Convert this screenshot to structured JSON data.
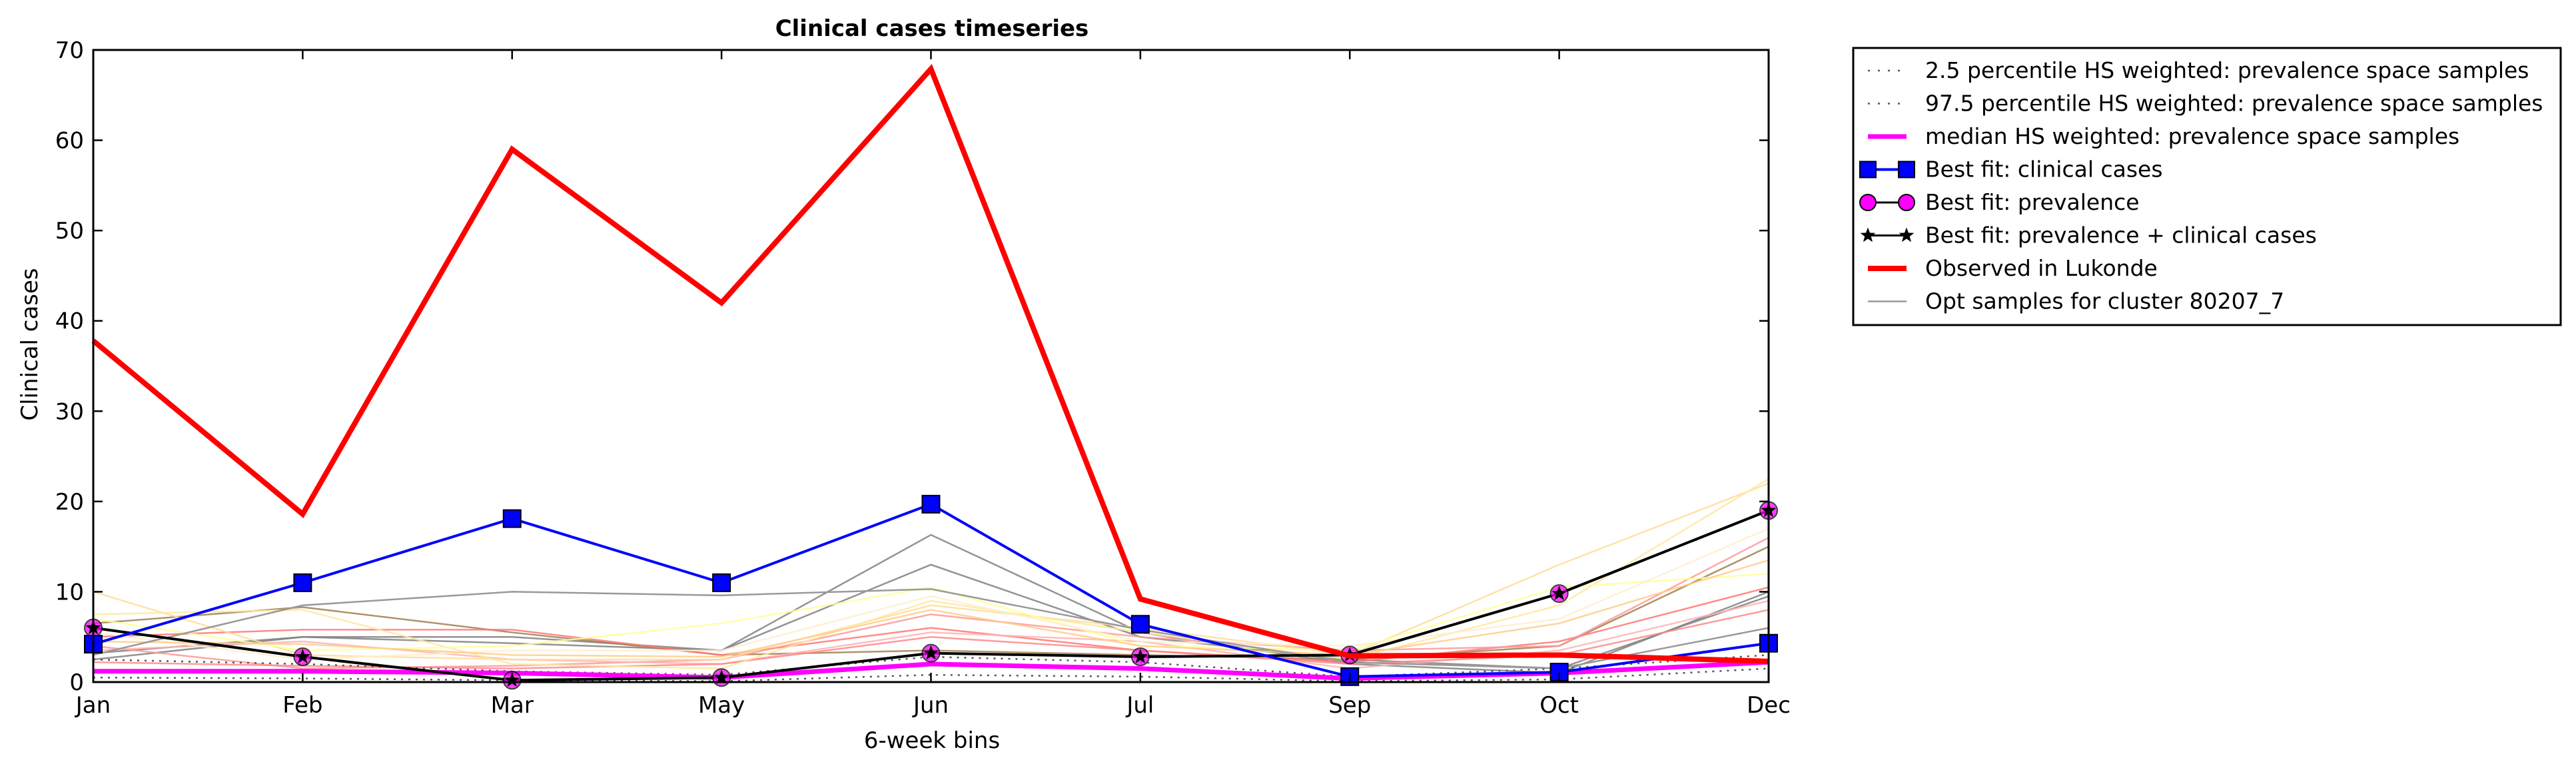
{
  "chart_data": {
    "type": "line",
    "title": "Clinical cases timeseries",
    "xlabel": "6-week bins",
    "ylabel": "Clinical cases",
    "categories": [
      "Jan",
      "Feb",
      "Mar",
      "May",
      "Jun",
      "Jul",
      "Sep",
      "Oct",
      "Dec"
    ],
    "ylim": [
      0,
      70
    ],
    "yticks": [
      0,
      10,
      20,
      30,
      40,
      50,
      60,
      70
    ],
    "grid": false,
    "legend_position": "outside-right",
    "colors": {
      "observed": "#ff0000",
      "best_fit_clinical": "#0000ff",
      "best_fit_prevalence": "#ff00ff",
      "best_fit_combined": "#000000",
      "median": "#ff00ff",
      "percentile": "#555555",
      "opt_samples": "#999999"
    },
    "series": [
      {
        "name": "2.5 percentile HS weighted: prevalence space samples",
        "style": "dotted",
        "values": [
          0.5,
          0.4,
          0.2,
          0.1,
          0.8,
          0.6,
          0.1,
          0.3,
          1.5
        ]
      },
      {
        "name": "97.5 percentile HS weighted: prevalence space samples",
        "style": "dotted",
        "values": [
          2.5,
          2.0,
          1.2,
          0.8,
          2.8,
          2.2,
          0.6,
          1.5,
          3.0
        ]
      },
      {
        "name": "median HS weighted: prevalence space samples",
        "style": "solid",
        "values": [
          1.2,
          1.2,
          1.0,
          0.5,
          2.0,
          1.5,
          0.4,
          1.0,
          2.2
        ]
      },
      {
        "name": "Best fit: clinical cases",
        "style": "square",
        "values": [
          4.2,
          11.0,
          18.1,
          11.0,
          19.7,
          6.4,
          0.6,
          1.1,
          4.3
        ]
      },
      {
        "name": "Best fit: prevalence",
        "style": "circle",
        "values": [
          6.0,
          2.8,
          0.2,
          0.5,
          3.2,
          2.8,
          3.0,
          9.8,
          19.0
        ]
      },
      {
        "name": "Best fit: prevalence + clinical cases",
        "style": "star",
        "values": [
          6.0,
          2.8,
          0.2,
          0.5,
          3.2,
          2.8,
          3.0,
          9.8,
          19.0
        ]
      },
      {
        "name": "Observed in Lukonde",
        "style": "thick",
        "values": [
          37.8,
          18.6,
          59.0,
          42.0,
          67.9,
          9.2,
          2.9,
          3.0,
          2.3
        ]
      },
      {
        "name": "Opt samples for cluster 80207_7",
        "style": "thin",
        "values": [
          3.0,
          8.5,
          10.0,
          9.6,
          10.3,
          5.8,
          2.2,
          1.5,
          6.0
        ]
      }
    ],
    "extra_samples": [
      {
        "color": "#808080",
        "values": [
          2.5,
          5.0,
          5.0,
          3.5,
          16.3,
          5.5,
          2.0,
          1.0,
          10.0
        ]
      },
      {
        "color": "#808080",
        "values": [
          3.2,
          5.0,
          4.3,
          3.5,
          13.0,
          5.0,
          2.5,
          1.5,
          9.5
        ]
      },
      {
        "color": "#a08050",
        "values": [
          6.5,
          8.3,
          5.5,
          3.0,
          3.5,
          3.0,
          2.5,
          4.0,
          15.0
        ]
      },
      {
        "color": "#ff7777",
        "values": [
          5.0,
          5.8,
          5.8,
          3.0,
          6.0,
          3.5,
          2.2,
          4.5,
          10.5
        ]
      },
      {
        "color": "#ff9999",
        "values": [
          4.0,
          1.5,
          1.8,
          2.5,
          7.5,
          5.0,
          3.5,
          4.0,
          16.0
        ]
      },
      {
        "color": "#ffb3b3",
        "values": [
          3.5,
          4.5,
          2.5,
          2.0,
          5.5,
          4.5,
          1.5,
          3.5,
          9.0
        ]
      },
      {
        "color": "#ff8888",
        "values": [
          2.2,
          1.8,
          1.5,
          2.0,
          5.0,
          3.5,
          2.0,
          3.0,
          8.0
        ]
      },
      {
        "color": "#ffdd99",
        "values": [
          10.0,
          3.0,
          2.5,
          2.5,
          8.5,
          6.0,
          3.0,
          13.0,
          22.0
        ]
      },
      {
        "color": "#ffe8a0",
        "values": [
          7.5,
          8.0,
          2.0,
          1.5,
          9.0,
          5.5,
          2.5,
          8.5,
          22.5
        ]
      },
      {
        "color": "#ffff99",
        "values": [
          7.0,
          3.5,
          4.0,
          6.5,
          10.5,
          4.0,
          3.5,
          10.5,
          12.0
        ]
      },
      {
        "color": "#ffeecc",
        "values": [
          5.5,
          2.5,
          3.5,
          3.5,
          9.5,
          4.5,
          4.0,
          7.0,
          17.0
        ]
      },
      {
        "color": "#ffcc88",
        "values": [
          4.5,
          4.2,
          3.0,
          2.8,
          8.0,
          4.0,
          3.0,
          6.5,
          13.5
        ]
      }
    ]
  }
}
